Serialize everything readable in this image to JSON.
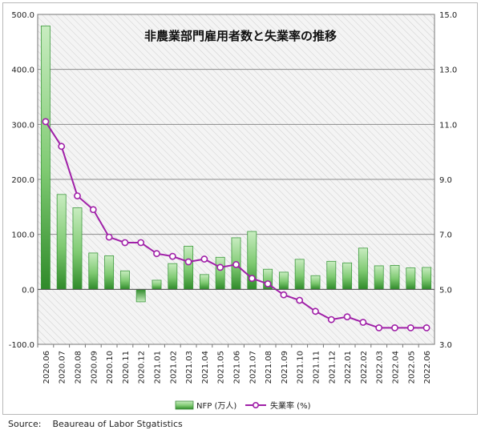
{
  "chart_data": {
    "type": "bar+line",
    "title": "非農業部門雇用者数と失業率の推移",
    "categories": [
      "2020.06",
      "2020.07",
      "2020.08",
      "2020.09",
      "2020.10",
      "2020.11",
      "2020.12",
      "2021.01",
      "2021.02",
      "2021.03",
      "2021.04",
      "2021.05",
      "2021.06",
      "2021.07",
      "2021.08",
      "2021.09",
      "2021.10",
      "2021.11",
      "2021.12",
      "2022.01",
      "2022.02",
      "2022.03",
      "2022.04",
      "2022.05",
      "2022.06"
    ],
    "series": [
      {
        "name": "NFP (万人)",
        "type": "bar",
        "axis": "left",
        "values": [
          479.1,
          172.6,
          148.3,
          66.1,
          61.0,
          33.6,
          -22.7,
          16.6,
          46.8,
          78.5,
          26.9,
          58.3,
          93.8,
          105.3,
          36.6,
          31.2,
          54.6,
          24.9,
          51.0,
          48.1,
          75.0,
          42.8,
          43.6,
          39.0,
          39.8
        ]
      },
      {
        "name": "失業率 (%)",
        "type": "line",
        "axis": "right",
        "values": [
          11.1,
          10.2,
          8.4,
          7.9,
          6.9,
          6.7,
          6.7,
          6.3,
          6.2,
          6.0,
          6.1,
          5.8,
          5.9,
          5.4,
          5.2,
          4.8,
          4.6,
          4.2,
          3.9,
          4.0,
          3.8,
          3.6,
          3.6,
          3.6,
          3.6
        ]
      }
    ],
    "y_left": {
      "min": -100,
      "max": 500,
      "ticks": [
        "-100.0",
        "0.0",
        "100.0",
        "200.0",
        "300.0",
        "400.0",
        "500.0"
      ]
    },
    "y_right": {
      "min": 3,
      "max": 15,
      "ticks": [
        "3.0",
        "5.0",
        "7.0",
        "9.0",
        "11.0",
        "13.0",
        "15.0"
      ]
    },
    "grid": true,
    "legend_position": "bottom",
    "colors": {
      "bar": "#5cb85c",
      "bar_dark": "#2e7d32",
      "line": "#a020a8",
      "grid": "#888888"
    }
  },
  "source": "Source:    Beaureau of Labor Stgatistics"
}
